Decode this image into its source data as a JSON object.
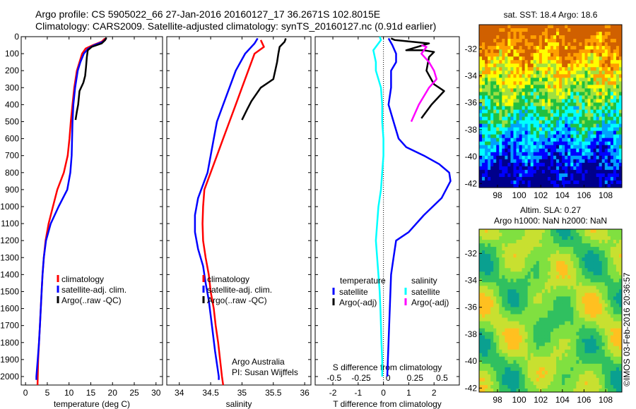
{
  "header": {
    "line1": "Argo profile: CS 5905022_66 27-Jan-2016 20160127_17 36.2671S 102.8015E",
    "line2": "Climatology: CARS2009. Satellite-adjusted climatology: synTS_20160127.nc (0.91d earlier)"
  },
  "credit": "©IMOS 03-Feb-2016 20:36:57",
  "colors": {
    "climatology": "#ff0000",
    "satellite": "#0000ff",
    "argo": "#000000",
    "salinity_satellite": "#00ffff",
    "salinity_argo": "#ff00ff"
  },
  "chart_data": [
    {
      "id": "temperature",
      "type": "line",
      "xlabel": "temperature (deg C)",
      "ylabel": "",
      "xlim": [
        -1,
        31.5
      ],
      "ylim": [
        2050,
        0
      ],
      "xticks": [
        0,
        5,
        10,
        15,
        20,
        25,
        30
      ],
      "yticks": [
        0,
        100,
        200,
        300,
        400,
        500,
        600,
        700,
        800,
        900,
        1000,
        1100,
        1200,
        1300,
        1400,
        1500,
        1600,
        1700,
        1800,
        1900,
        2000
      ],
      "legend": {
        "position": "lower-center",
        "entries": [
          "climatology",
          "satellite-adj. clim.",
          "Argo(..raw -QC)"
        ]
      },
      "series": [
        {
          "name": "climatology",
          "color": "#ff0000",
          "points": [
            [
              18.3,
              10
            ],
            [
              17.5,
              30
            ],
            [
              15.5,
              50
            ],
            [
              13.8,
              70
            ],
            [
              13.0,
              100
            ],
            [
              12.4,
              150
            ],
            [
              11.8,
              200
            ],
            [
              11.2,
              300
            ],
            [
              10.8,
              400
            ],
            [
              10.4,
              500
            ],
            [
              10.1,
              600
            ],
            [
              9.7,
              700
            ],
            [
              8.8,
              800
            ],
            [
              7.3,
              900
            ],
            [
              6.3,
              1000
            ],
            [
              5.3,
              1100
            ],
            [
              4.6,
              1200
            ],
            [
              4.2,
              1300
            ],
            [
              3.9,
              1400
            ],
            [
              3.7,
              1500
            ],
            [
              3.5,
              1600
            ],
            [
              3.3,
              1700
            ],
            [
              3.1,
              1800
            ],
            [
              2.9,
              1900
            ],
            [
              2.8,
              2000
            ],
            [
              2.75,
              2050
            ]
          ]
        },
        {
          "name": "satellite-adj. clim.",
          "color": "#0000ff",
          "points": [
            [
              18.6,
              10
            ],
            [
              17.8,
              30
            ],
            [
              15.8,
              50
            ],
            [
              14.4,
              70
            ],
            [
              13.4,
              100
            ],
            [
              12.6,
              150
            ],
            [
              12.0,
              200
            ],
            [
              11.4,
              300
            ],
            [
              11.0,
              400
            ],
            [
              10.8,
              500
            ],
            [
              10.7,
              600
            ],
            [
              10.6,
              700
            ],
            [
              10.3,
              800
            ],
            [
              9.6,
              900
            ],
            [
              7.6,
              1000
            ],
            [
              5.8,
              1100
            ],
            [
              4.7,
              1200
            ],
            [
              4.2,
              1300
            ],
            [
              3.9,
              1400
            ],
            [
              3.7,
              1500
            ],
            [
              3.5,
              1600
            ],
            [
              3.3,
              1700
            ],
            [
              3.1,
              1800
            ],
            [
              2.8,
              1900
            ],
            [
              2.5,
              2000
            ],
            [
              2.5,
              2020
            ]
          ]
        },
        {
          "name": "Argo(..raw -QC)",
          "color": "#000000",
          "points": [
            [
              18.6,
              5
            ],
            [
              18.3,
              20
            ],
            [
              17.5,
              40
            ],
            [
              15.2,
              60
            ],
            [
              14.3,
              80
            ],
            [
              14.1,
              120
            ],
            [
              13.9,
              180
            ],
            [
              13.7,
              230
            ],
            [
              13.3,
              270
            ],
            [
              12.4,
              320
            ],
            [
              12.1,
              400
            ],
            [
              11.8,
              440
            ],
            [
              11.5,
              490
            ]
          ]
        }
      ]
    },
    {
      "id": "salinity",
      "type": "line",
      "xlabel": "salinity",
      "ylabel": "",
      "xlim": [
        33.8,
        36.1
      ],
      "ylim": [
        2050,
        0
      ],
      "xticks": [
        34,
        34.5,
        35,
        35.5,
        36
      ],
      "yticks": [
        0,
        100,
        200,
        300,
        400,
        500,
        600,
        700,
        800,
        900,
        1000,
        1100,
        1200,
        1300,
        1400,
        1500,
        1600,
        1700,
        1800,
        1900,
        2000
      ],
      "legend": {
        "position": "lower-center",
        "entries": [
          "climatology",
          "satellite-adj. clim.",
          "Argo(..raw -QC)"
        ]
      },
      "annotation": [
        "Argo Australia",
        "PI: Susan Wijffels"
      ],
      "series": [
        {
          "name": "climatology",
          "color": "#ff0000",
          "points": [
            [
              35.3,
              20
            ],
            [
              35.35,
              60
            ],
            [
              35.2,
              100
            ],
            [
              35.1,
              200
            ],
            [
              35.0,
              300
            ],
            [
              34.9,
              400
            ],
            [
              34.8,
              500
            ],
            [
              34.7,
              600
            ],
            [
              34.6,
              700
            ],
            [
              34.5,
              800
            ],
            [
              34.4,
              900
            ],
            [
              34.38,
              1000
            ],
            [
              34.37,
              1100
            ],
            [
              34.38,
              1200
            ],
            [
              34.42,
              1300
            ],
            [
              34.47,
              1400
            ],
            [
              34.5,
              1500
            ],
            [
              34.55,
              1600
            ],
            [
              34.58,
              1700
            ],
            [
              34.62,
              1800
            ],
            [
              34.65,
              1900
            ],
            [
              34.68,
              2000
            ],
            [
              34.7,
              2050
            ]
          ]
        },
        {
          "name": "satellite-adj. clim.",
          "color": "#0000ff",
          "points": [
            [
              35.25,
              10
            ],
            [
              35.2,
              40
            ],
            [
              35.1,
              80
            ],
            [
              35.05,
              100
            ],
            [
              34.9,
              200
            ],
            [
              34.8,
              300
            ],
            [
              34.7,
              400
            ],
            [
              34.6,
              500
            ],
            [
              34.55,
              600
            ],
            [
              34.5,
              700
            ],
            [
              34.45,
              800
            ],
            [
              34.4,
              850
            ],
            [
              34.3,
              950
            ],
            [
              34.25,
              1050
            ],
            [
              34.25,
              1150
            ],
            [
              34.3,
              1250
            ],
            [
              34.38,
              1350
            ],
            [
              34.42,
              1450
            ],
            [
              34.47,
              1550
            ],
            [
              34.52,
              1700
            ],
            [
              34.57,
              1850
            ],
            [
              34.63,
              2000
            ],
            [
              34.63,
              2020
            ]
          ]
        },
        {
          "name": "Argo(..raw -QC)",
          "color": "#000000",
          "points": [
            [
              35.7,
              10
            ],
            [
              35.68,
              30
            ],
            [
              35.6,
              60
            ],
            [
              35.58,
              100
            ],
            [
              35.56,
              150
            ],
            [
              35.5,
              250
            ],
            [
              35.3,
              300
            ],
            [
              35.15,
              380
            ],
            [
              35.08,
              430
            ],
            [
              35.0,
              490
            ]
          ]
        }
      ]
    },
    {
      "id": "difference",
      "type": "line",
      "xlabel": "T difference from climatology",
      "xlabel_top": "S difference from climatology",
      "ylabel": "",
      "xlim": [
        -2.7,
        3.0
      ],
      "ylim": [
        2050,
        0
      ],
      "xticks": [
        -2,
        -1,
        0,
        1,
        2
      ],
      "top_ticklabels": [
        "-0.5",
        "-0.25",
        "0",
        "0.25",
        "0.5"
      ],
      "yticks": [
        0,
        100,
        200,
        300,
        400,
        500,
        600,
        700,
        800,
        900,
        1000,
        1100,
        1200,
        1300,
        1400,
        1500,
        1600,
        1700,
        1800,
        1900,
        2000
      ],
      "legend": {
        "position": "lower-center",
        "groups": [
          {
            "heading": "temperature",
            "entries": [
              "satellite",
              "Argo(-adj)"
            ]
          },
          {
            "heading": "salinity",
            "entries": [
              "satellite",
              "Argo(-adj)"
            ]
          }
        ]
      },
      "series": [
        {
          "name": "temperature satellite",
          "color": "#0000ff",
          "points": [
            [
              0.2,
              10
            ],
            [
              0.35,
              50
            ],
            [
              0.5,
              100
            ],
            [
              0.5,
              150
            ],
            [
              0.3,
              200
            ],
            [
              0.3,
              300
            ],
            [
              0.2,
              400
            ],
            [
              0.4,
              500
            ],
            [
              0.6,
              600
            ],
            [
              0.9,
              650
            ],
            [
              1.6,
              700
            ],
            [
              2.2,
              750
            ],
            [
              2.6,
              800
            ],
            [
              2.65,
              850
            ],
            [
              2.3,
              950
            ],
            [
              1.6,
              1050
            ],
            [
              1.0,
              1150
            ],
            [
              0.5,
              1200
            ],
            [
              0.4,
              1300
            ],
            [
              0.3,
              1400
            ],
            [
              0.25,
              1600
            ],
            [
              0.2,
              1800
            ],
            [
              0.15,
              2000
            ]
          ]
        },
        {
          "name": "temperature Argo(-adj)",
          "color": "#000000",
          "points": [
            [
              0.3,
              10
            ],
            [
              0.45,
              20
            ],
            [
              1.8,
              40
            ],
            [
              0.9,
              80
            ],
            [
              1.6,
              80
            ],
            [
              2.0,
              90
            ],
            [
              1.8,
              120
            ],
            [
              1.7,
              200
            ],
            [
              2.0,
              280
            ],
            [
              2.2,
              300
            ],
            [
              2.4,
              320
            ],
            [
              1.9,
              400
            ],
            [
              1.5,
              480
            ]
          ]
        },
        {
          "name": "salinity satellite",
          "color": "#00ffff",
          "points": [
            [
              -0.15,
              0
            ],
            [
              -0.1,
              20
            ],
            [
              -0.4,
              80
            ],
            [
              -0.3,
              150
            ],
            [
              -0.3,
              200
            ],
            [
              -0.1,
              300
            ],
            [
              -0.05,
              400
            ],
            [
              -0.05,
              500
            ],
            [
              0.0,
              600
            ],
            [
              0.0,
              700
            ],
            [
              -0.05,
              800
            ],
            [
              -0.1,
              900
            ],
            [
              -0.2,
              1000
            ],
            [
              -0.25,
              1100
            ],
            [
              -0.3,
              1200
            ],
            [
              -0.25,
              1300
            ],
            [
              -0.2,
              1400
            ],
            [
              -0.15,
              1500
            ],
            [
              -0.12,
              1600
            ],
            [
              -0.1,
              1700
            ],
            [
              -0.08,
              1800
            ],
            [
              -0.05,
              1900
            ],
            [
              -0.05,
              2000
            ]
          ]
        },
        {
          "name": "salinity Argo(-adj)",
          "color": "#ff00ff",
          "points": [
            [
              1.5,
              50
            ],
            [
              1.7,
              60
            ],
            [
              1.5,
              100
            ],
            [
              1.8,
              150
            ],
            [
              2.0,
              200
            ],
            [
              2.1,
              250
            ],
            [
              1.8,
              300
            ],
            [
              1.4,
              400
            ],
            [
              1.1,
              500
            ]
          ]
        }
      ]
    },
    {
      "id": "sst-map",
      "type": "heatmap",
      "title": "sat. SST: 18.4 Argo: 18.6",
      "xticks": [
        98,
        100,
        102,
        104,
        106,
        108
      ],
      "yticks": [
        -32,
        -34,
        -36,
        -38,
        -40,
        -42
      ],
      "xlim": [
        96.3,
        109.5
      ],
      "ylim": [
        -42.3,
        -30.2
      ],
      "colormap": [
        "#00008b",
        "#0000ff",
        "#00a0ff",
        "#00ffff",
        "#20c040",
        "#a0e040",
        "#ffff00",
        "#ffa000",
        "#d06000"
      ]
    },
    {
      "id": "sla-map",
      "type": "heatmap",
      "title_lines": [
        "Altim. SLA: 0.27",
        "Argo h1000: NaN h2000: NaN"
      ],
      "xticks": [
        98,
        100,
        102,
        104,
        106,
        108
      ],
      "yticks": [
        -32,
        -34,
        -36,
        -38,
        -40,
        -42
      ],
      "xlim": [
        96.3,
        109.5
      ],
      "ylim": [
        -42.3,
        -30.2
      ],
      "colormap": [
        "#0aa090",
        "#30c060",
        "#80e040",
        "#c8e030",
        "#ffc020"
      ]
    }
  ]
}
